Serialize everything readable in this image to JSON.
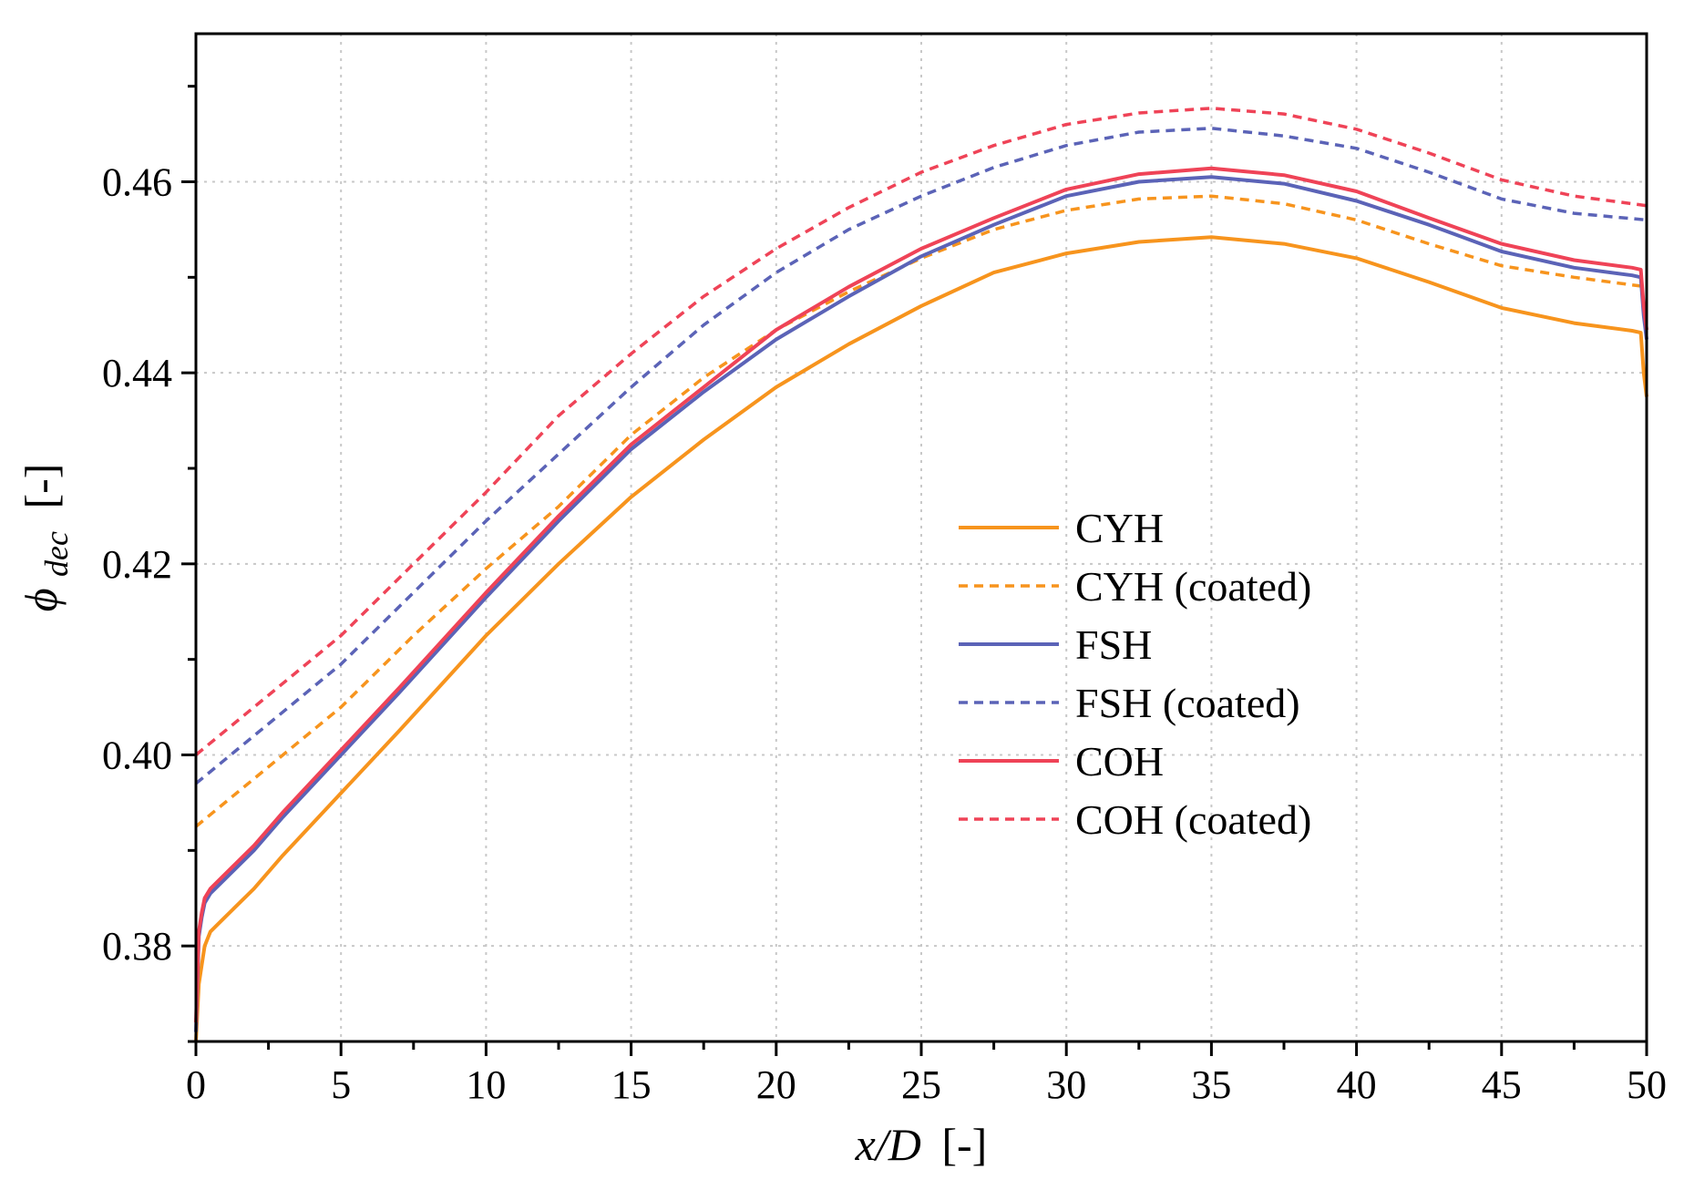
{
  "chart_data": {
    "type": "line",
    "xlabel": {
      "main": "x/D",
      "unit": "[-]"
    },
    "ylabel": {
      "symbol": "ϕ",
      "subscript": "dec",
      "unit": "[-]"
    },
    "xlim": [
      0,
      50
    ],
    "ylim": [
      0.37,
      0.4755
    ],
    "x_ticks": [
      0,
      5,
      10,
      15,
      20,
      25,
      30,
      35,
      40,
      45,
      50
    ],
    "x_tick_labels": [
      "0",
      "5",
      "10",
      "15",
      "20",
      "25",
      "30",
      "35",
      "40",
      "45",
      "50"
    ],
    "y_ticks": [
      0.38,
      0.4,
      0.42,
      0.44,
      0.46
    ],
    "y_tick_labels": [
      "0.38",
      "0.40",
      "0.42",
      "0.44",
      "0.46"
    ],
    "grid": true,
    "legend_position": "center-right",
    "series": [
      {
        "name": "CYH",
        "color": "#f7941d",
        "dash": "solid",
        "x": [
          0,
          0.1,
          0.2,
          0.3,
          0.5,
          1,
          2,
          3,
          5,
          7,
          10,
          12.5,
          15,
          17.5,
          20,
          22.5,
          25,
          27.5,
          30,
          32.5,
          35,
          37.5,
          40,
          42.5,
          45,
          47.5,
          49.5,
          49.8,
          49.9,
          50
        ],
        "y": [
          0.37,
          0.376,
          0.378,
          0.38,
          0.3815,
          0.383,
          0.386,
          0.3895,
          0.396,
          0.4025,
          0.4125,
          0.42,
          0.427,
          0.433,
          0.4385,
          0.443,
          0.447,
          0.4505,
          0.4525,
          0.4537,
          0.4542,
          0.4535,
          0.452,
          0.4495,
          0.4468,
          0.4452,
          0.4444,
          0.4442,
          0.44,
          0.4375
        ]
      },
      {
        "name": "CYH (coated)",
        "color": "#f7941d",
        "dash": "dashed",
        "x": [
          0,
          2,
          5,
          7.5,
          10,
          12.5,
          15,
          17.5,
          20,
          22.5,
          25,
          27.5,
          30,
          32.5,
          35,
          37.5,
          40,
          42.5,
          45,
          47.5,
          50
        ],
        "y": [
          0.3925,
          0.3975,
          0.405,
          0.4125,
          0.4195,
          0.426,
          0.4335,
          0.4395,
          0.4445,
          0.4485,
          0.452,
          0.455,
          0.457,
          0.4582,
          0.4585,
          0.4577,
          0.456,
          0.4535,
          0.4512,
          0.45,
          0.449
        ]
      },
      {
        "name": "FSH",
        "color": "#5b63b7",
        "dash": "solid",
        "x": [
          0,
          0.1,
          0.2,
          0.3,
          0.5,
          1,
          2,
          3,
          5,
          7,
          10,
          12.5,
          15,
          17.5,
          20,
          22.5,
          25,
          27.5,
          30,
          32.5,
          35,
          37.5,
          40,
          42.5,
          45,
          47.5,
          49.5,
          49.8,
          49.9,
          50
        ],
        "y": [
          0.371,
          0.381,
          0.383,
          0.3845,
          0.3855,
          0.387,
          0.39,
          0.3935,
          0.4,
          0.4065,
          0.4165,
          0.4245,
          0.432,
          0.438,
          0.4435,
          0.448,
          0.4522,
          0.4555,
          0.4585,
          0.46,
          0.4605,
          0.4598,
          0.458,
          0.4555,
          0.4527,
          0.451,
          0.4502,
          0.45,
          0.446,
          0.4435
        ]
      },
      {
        "name": "FSH (coated)",
        "color": "#5b63b7",
        "dash": "dashed",
        "x": [
          0,
          2,
          5,
          7.5,
          10,
          12.5,
          15,
          17.5,
          20,
          22.5,
          25,
          27.5,
          30,
          32.5,
          35,
          37.5,
          40,
          42.5,
          45,
          47.5,
          50
        ],
        "y": [
          0.397,
          0.402,
          0.4095,
          0.417,
          0.4245,
          0.4315,
          0.4385,
          0.445,
          0.4505,
          0.455,
          0.4585,
          0.4615,
          0.4638,
          0.4652,
          0.4656,
          0.4648,
          0.4635,
          0.461,
          0.4582,
          0.4567,
          0.456
        ]
      },
      {
        "name": "COH",
        "color": "#ef4357",
        "dash": "solid",
        "x": [
          0,
          0.1,
          0.2,
          0.3,
          0.5,
          1,
          2,
          3,
          5,
          7,
          10,
          12.5,
          15,
          17.5,
          20,
          22.5,
          25,
          27.5,
          30,
          32.5,
          35,
          37.5,
          40,
          42.5,
          45,
          47.5,
          49.5,
          49.8,
          49.9,
          50
        ],
        "y": [
          0.372,
          0.3815,
          0.3835,
          0.385,
          0.386,
          0.3875,
          0.3905,
          0.394,
          0.4005,
          0.407,
          0.417,
          0.425,
          0.4325,
          0.4385,
          0.4445,
          0.449,
          0.453,
          0.4562,
          0.4592,
          0.4608,
          0.4614,
          0.4607,
          0.459,
          0.4562,
          0.4535,
          0.4518,
          0.451,
          0.4508,
          0.447,
          0.4445
        ]
      },
      {
        "name": "COH (coated)",
        "color": "#ef4357",
        "dash": "dashed",
        "x": [
          0,
          2,
          5,
          7.5,
          10,
          12.5,
          15,
          17.5,
          20,
          22.5,
          25,
          27.5,
          30,
          32.5,
          35,
          37.5,
          40,
          42.5,
          45,
          47.5,
          50
        ],
        "y": [
          0.4,
          0.405,
          0.4125,
          0.42,
          0.4275,
          0.4355,
          0.442,
          0.448,
          0.453,
          0.4573,
          0.461,
          0.4638,
          0.466,
          0.4672,
          0.4677,
          0.4671,
          0.4655,
          0.463,
          0.4602,
          0.4585,
          0.4575
        ]
      }
    ]
  }
}
